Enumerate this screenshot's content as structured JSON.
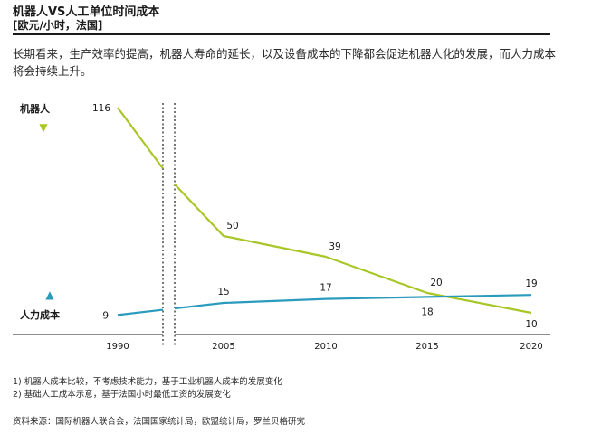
{
  "header": {
    "title": "机器人VS人工单位时间成本",
    "unit": "[欧元/小时，法国]",
    "description": "长期看来，生产效率的提高，机器人寿命的延长，以及设备成本的下降都会促进机器人化的发展，而人力成本将会持续上升。"
  },
  "chart_data": {
    "type": "line",
    "x": [
      "1990",
      "2005",
      "2010",
      "2015",
      "2020"
    ],
    "series": [
      {
        "name": "机器人",
        "values": [
          116,
          50,
          39,
          20,
          10
        ],
        "color": "#a8c626",
        "marker": "▼"
      },
      {
        "name": "人力成本",
        "values": [
          9,
          15,
          17,
          18,
          19
        ],
        "color": "#2a9bbd",
        "marker": "▲"
      }
    ],
    "axis_break": "1990–2005",
    "grid": false
  },
  "footnotes": [
    "1) 机器人成本比较，不考虑技术能力，基于工业机器人成本的发展变化",
    "2) 基础人工成本示意，基于法国小时最低工资的发展变化"
  ],
  "source": "资料来源：国际机器人联合会，法国国家统计局，欧盟统计局，罗兰贝格研究"
}
